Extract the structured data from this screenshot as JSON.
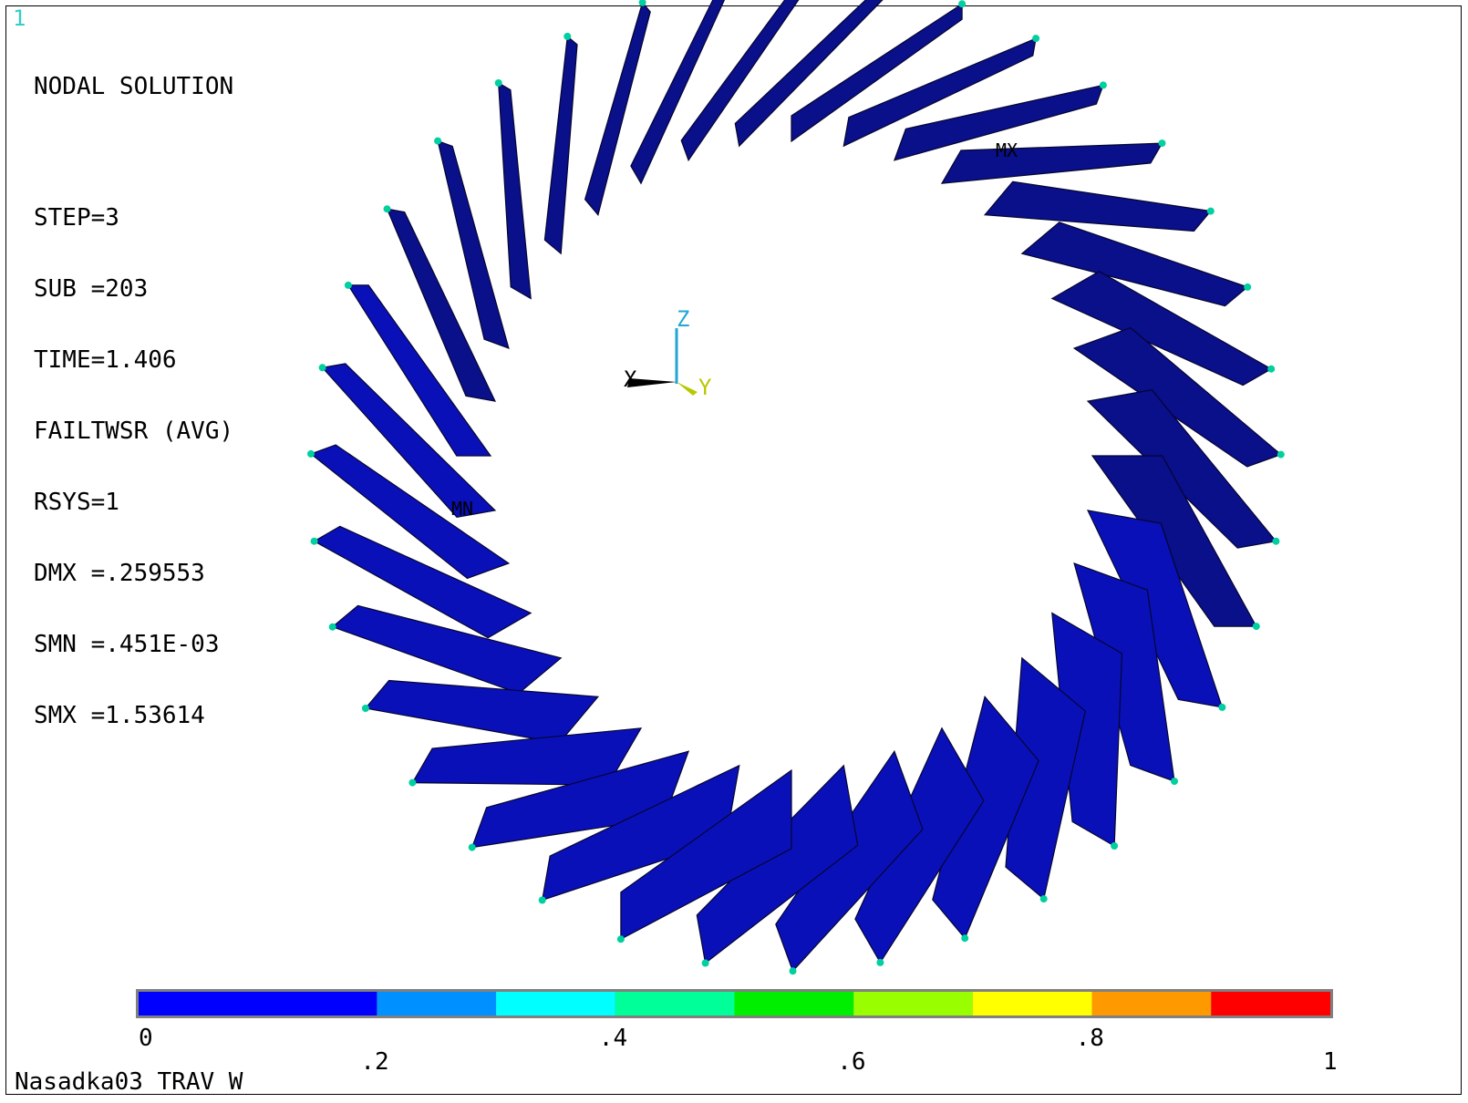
{
  "window_number": "1",
  "header": {
    "title": "NODAL SOLUTION",
    "lines": [
      "STEP=3",
      "SUB =203",
      "TIME=1.406",
      "FAILTWSR (AVG)",
      "RSYS=1",
      "DMX =.259553",
      "SMN =.451E-03",
      "SMX =1.53614"
    ]
  },
  "markers": {
    "min": "MN",
    "max": "MX"
  },
  "triad": {
    "x": "X",
    "y": "Y",
    "z": "Z"
  },
  "legend": {
    "colors": [
      "#0000ff",
      "#0090ff",
      "#00ffff",
      "#00ff99",
      "#00ee00",
      "#99ff00",
      "#ffff00",
      "#ff9900",
      "#ff0000"
    ],
    "ticks": [
      {
        "label": "0",
        "value": 0
      },
      {
        "label": ".2",
        "value": 0.2
      },
      {
        "label": ".4",
        "value": 0.4
      },
      {
        "label": ".6",
        "value": 0.6
      },
      {
        "label": ".8",
        "value": 0.8
      },
      {
        "label": "1",
        "value": 1
      }
    ]
  },
  "caption": "Nasadka03 TRAV W",
  "blade_count": 36
}
